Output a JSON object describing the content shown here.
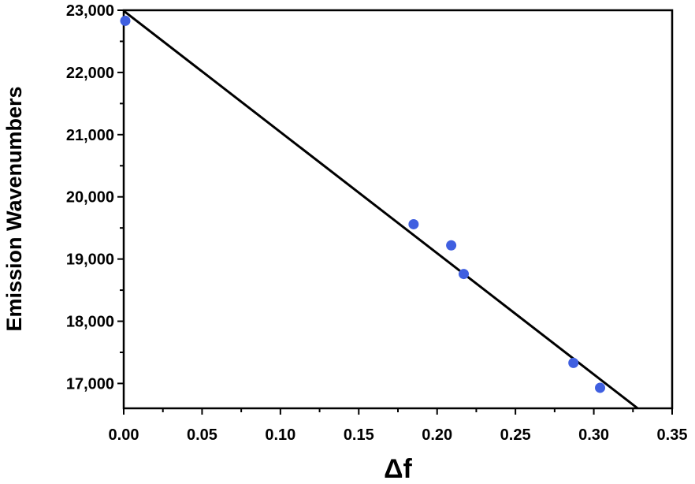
{
  "chart_data": {
    "type": "scatter",
    "xlabel": "Δf",
    "ylabel": "Emission Wavenumbers",
    "xlim": [
      0,
      0.35
    ],
    "ylim": [
      16600,
      23000
    ],
    "x_ticks": [
      0.0,
      0.05,
      0.1,
      0.15,
      0.2,
      0.25,
      0.3,
      0.35
    ],
    "x_tick_labels": [
      "0.00",
      "0.05",
      "0.10",
      "0.15",
      "0.20",
      "0.25",
      "0.30",
      "0.35"
    ],
    "y_ticks": [
      17000,
      18000,
      19000,
      20000,
      21000,
      22000,
      23000
    ],
    "y_tick_labels": [
      "17,000",
      "18,000",
      "19,000",
      "20,000",
      "21,000",
      "22,000",
      "23,000"
    ],
    "grid": false,
    "legend": "none",
    "series": [
      {
        "type": "scatter",
        "color": "#3f5fe0",
        "x": [
          0.001,
          0.185,
          0.209,
          0.217,
          0.287,
          0.304
        ],
        "y": [
          22830,
          19560,
          19220,
          18760,
          17330,
          16930
        ]
      },
      {
        "type": "line",
        "color": "#000000",
        "x": [
          0.0,
          0.328
        ],
        "y": [
          22990,
          16600
        ]
      }
    ]
  }
}
